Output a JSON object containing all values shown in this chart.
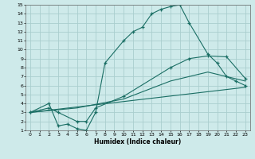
{
  "xlabel": "Humidex (Indice chaleur)",
  "xlim": [
    -0.5,
    23.5
  ],
  "ylim": [
    1,
    15
  ],
  "xticks": [
    0,
    1,
    2,
    3,
    4,
    5,
    6,
    7,
    8,
    9,
    10,
    11,
    12,
    13,
    14,
    15,
    16,
    17,
    18,
    19,
    20,
    21,
    22,
    23
  ],
  "yticks": [
    1,
    2,
    3,
    4,
    5,
    6,
    7,
    8,
    9,
    10,
    11,
    12,
    13,
    14,
    15
  ],
  "bg_color": "#ceeaea",
  "grid_color": "#aacece",
  "line_color": "#1a6e64",
  "line1_x": [
    0,
    2,
    3,
    4,
    5,
    6,
    7,
    8,
    10,
    11,
    12,
    13,
    14,
    15,
    16,
    17,
    19,
    20,
    21,
    22,
    23
  ],
  "line1_y": [
    3.0,
    4.0,
    1.5,
    1.7,
    1.2,
    1.0,
    3.0,
    8.5,
    11.0,
    12.0,
    12.5,
    14.0,
    14.5,
    14.8,
    15.0,
    13.0,
    9.5,
    8.5,
    7.0,
    6.5,
    6.0
  ],
  "line2_x": [
    0,
    2,
    3,
    5,
    6,
    7,
    10,
    15,
    17,
    19,
    21,
    23
  ],
  "line2_y": [
    3.0,
    3.5,
    3.0,
    2.0,
    2.0,
    3.5,
    4.8,
    8.0,
    9.0,
    9.3,
    9.2,
    6.8
  ],
  "line3_x": [
    0,
    23
  ],
  "line3_y": [
    3.0,
    5.8
  ],
  "line4_x": [
    0,
    5,
    10,
    15,
    19,
    23
  ],
  "line4_y": [
    3.0,
    3.5,
    4.5,
    6.5,
    7.5,
    6.5
  ]
}
